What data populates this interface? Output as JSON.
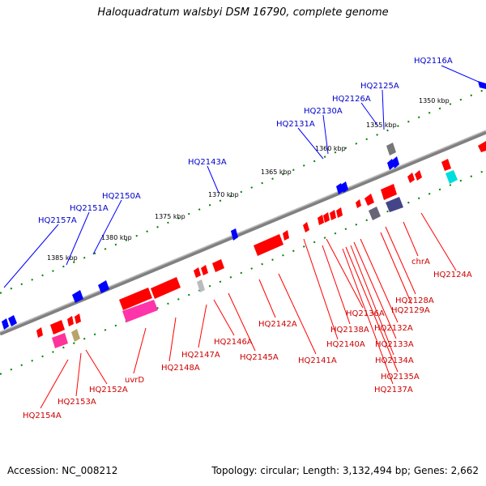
{
  "title": "Haloquadratum walsbyi DSM 16790, complete genome",
  "footer": {
    "accession": "Accession: NC_008212",
    "topology": "Topology: circular; Length: 3,132,494 bp; Genes: 2,662"
  },
  "scale_labels": [
    "1350 kbp",
    "1355 kbp",
    "1360 kbp",
    "1365 kbp",
    "1370 kbp",
    "1375 kbp",
    "1380 kbp",
    "1385 kbp"
  ],
  "top_gene_labels": [
    "HQ2116A",
    "HQ2125A",
    "HQ2126A",
    "HQ2130A",
    "HQ2131A",
    "HQ2143A",
    "HQ2150A",
    "HQ2151A",
    "HQ2157A"
  ],
  "bottom_gene_labels": [
    "chrA",
    "HQ2124A",
    "HQ2128A",
    "HQ2129A",
    "HQ2136A",
    "HQ2132A",
    "HQ2138A",
    "HQ2133A",
    "HQ2140A",
    "HQ2134A",
    "HQ2142A",
    "HQ2141A",
    "HQ2135A",
    "HQ2137A",
    "HQ2146A",
    "HQ2145A",
    "HQ2147A",
    "HQ2148A",
    "uvrD",
    "HQ2152A",
    "HQ2153A",
    "HQ2154A"
  ],
  "colors": {
    "forward_gene": "#0000ff",
    "reverse_gene": "#ff0000",
    "backbone": "#808080",
    "tick": "#008000",
    "top_label": "#0000cc",
    "bottom_label": "#cc0000"
  }
}
